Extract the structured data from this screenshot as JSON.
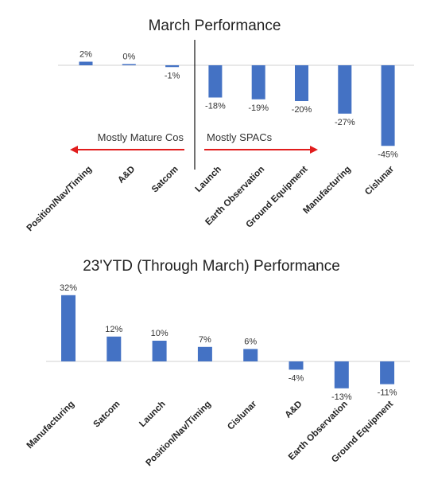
{
  "chart_data": [
    {
      "type": "bar",
      "title": "March Performance",
      "categories": [
        "Position/Nav/Timing",
        "A&D",
        "Satcom",
        "Launch",
        "Earth Observation",
        "Ground Equipment",
        "Manufacturing",
        "Cislunar"
      ],
      "values": [
        2,
        0,
        -1,
        -18,
        -19,
        -20,
        -27,
        -45
      ],
      "data_labels": [
        "2%",
        "0%",
        "-1%",
        "-18%",
        "-19%",
        "-20%",
        "-27%",
        "-45%"
      ],
      "annotations": {
        "left_arrow_label": "Mostly Mature Cos",
        "right_arrow_label": "Mostly SPACs",
        "arrow_color": "#e11d1d"
      },
      "bar_color": "#4472c4",
      "grid": false
    },
    {
      "type": "bar",
      "title": "23'YTD (Through March) Performance",
      "categories": [
        "Manufacturing",
        "Satcom",
        "Launch",
        "Position/Nav/Timing",
        "Cislunar",
        "A&D",
        "Earth Observation",
        "Ground Equipment"
      ],
      "values": [
        32,
        12,
        10,
        7,
        6,
        -4,
        -13,
        -11
      ],
      "data_labels": [
        "32%",
        "12%",
        "10%",
        "7%",
        "6%",
        "-4%",
        "-13%",
        "-11%"
      ],
      "bar_color": "#4472c4",
      "grid": false
    }
  ]
}
